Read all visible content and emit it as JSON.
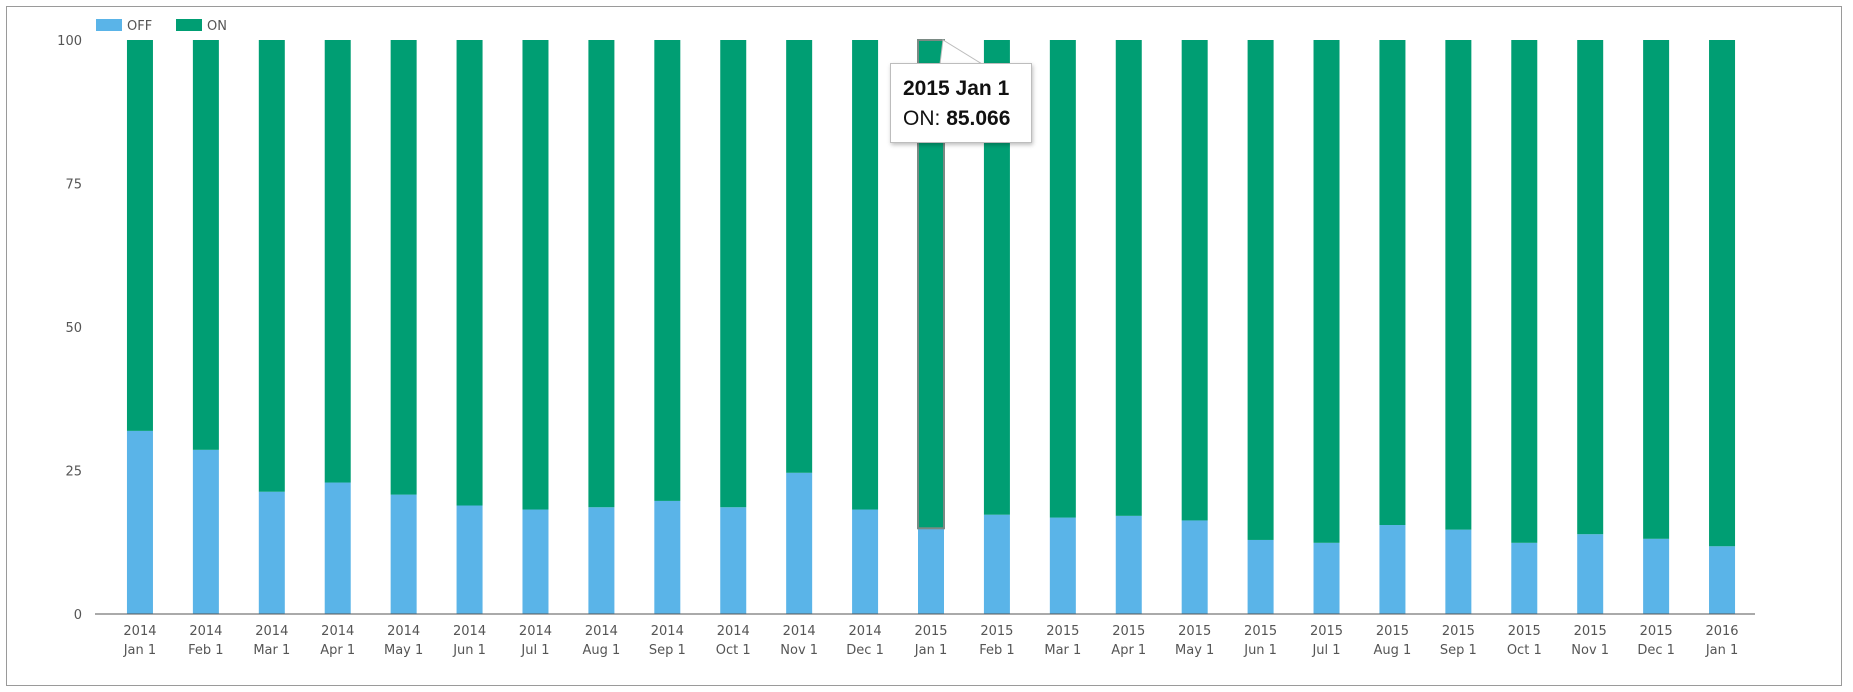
{
  "chart_data": {
    "type": "bar",
    "stacked": true,
    "legend_position": "top-left",
    "grid": false,
    "ylim": [
      0,
      100
    ],
    "yticks": [
      "0",
      "25",
      "50",
      "75",
      "100"
    ],
    "categories": [
      [
        "2014",
        "Jan 1"
      ],
      [
        "2014",
        "Feb 1"
      ],
      [
        "2014",
        "Mar 1"
      ],
      [
        "2014",
        "Apr 1"
      ],
      [
        "2014",
        "May 1"
      ],
      [
        "2014",
        "Jun 1"
      ],
      [
        "2014",
        "Jul 1"
      ],
      [
        "2014",
        "Aug 1"
      ],
      [
        "2014",
        "Sep 1"
      ],
      [
        "2014",
        "Oct 1"
      ],
      [
        "2014",
        "Nov 1"
      ],
      [
        "2014",
        "Dec 1"
      ],
      [
        "2015",
        "Jan 1"
      ],
      [
        "2015",
        "Feb 1"
      ],
      [
        "2015",
        "Mar 1"
      ],
      [
        "2015",
        "Apr 1"
      ],
      [
        "2015",
        "May 1"
      ],
      [
        "2015",
        "Jun 1"
      ],
      [
        "2015",
        "Jul 1"
      ],
      [
        "2015",
        "Aug 1"
      ],
      [
        "2015",
        "Sep 1"
      ],
      [
        "2015",
        "Oct 1"
      ],
      [
        "2015",
        "Nov 1"
      ],
      [
        "2015",
        "Dec 1"
      ],
      [
        "2016",
        "Jan 1"
      ]
    ],
    "series": [
      {
        "name": "OFF",
        "color": "#5ab4e8",
        "values": [
          31.9,
          28.6,
          21.3,
          22.9,
          20.8,
          18.9,
          18.2,
          18.6,
          19.7,
          18.6,
          24.6,
          18.2,
          14.934,
          17.3,
          16.8,
          17.1,
          16.3,
          12.9,
          12.4,
          15.5,
          14.7,
          12.4,
          13.9,
          13.1,
          11.8
        ]
      },
      {
        "name": "ON",
        "color": "#009e73",
        "values": [
          68.1,
          71.4,
          78.7,
          77.1,
          79.2,
          81.1,
          81.8,
          81.4,
          80.3,
          81.4,
          75.4,
          81.8,
          85.066,
          82.7,
          83.2,
          82.9,
          83.7,
          87.1,
          87.6,
          84.5,
          85.3,
          87.6,
          86.1,
          86.9,
          88.2
        ]
      }
    ],
    "tooltip": {
      "title": "2015 Jan 1",
      "series_label": "ON:",
      "value": "85.066",
      "category_index": 12
    }
  }
}
